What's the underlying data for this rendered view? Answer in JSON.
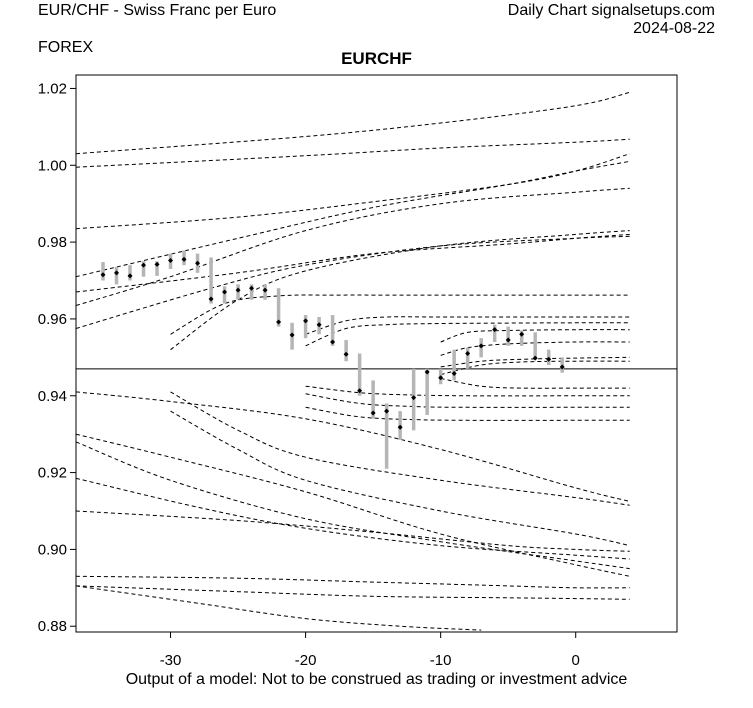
{
  "header": {
    "left_title": "EUR/CHF - Swiss Franc per Euro",
    "left_sub": "FOREX",
    "right_title": "Daily Chart signalsetups.com",
    "right_date": "2024-08-22"
  },
  "footer": "Output of a model: Not to be construed as trading or investment advice",
  "chart_data": {
    "type": "candlestick",
    "title": "EURCHF",
    "xlim": [
      -37,
      7.5
    ],
    "ylim": [
      0.8785,
      1.0235
    ],
    "x_ticks": [
      -30,
      -20,
      -10,
      0
    ],
    "x_tick_labels": [
      "-30",
      "-20",
      "-10",
      "0"
    ],
    "y_ticks": [
      0.88,
      0.9,
      0.92,
      0.94,
      0.96,
      0.98,
      1.0,
      1.02
    ],
    "y_tick_labels": [
      "0.88",
      "0.90",
      "0.92",
      "0.94",
      "0.96",
      "0.98",
      "1.00",
      "1.02"
    ],
    "reference_line": 0.947,
    "colors": {
      "range_bar": "#b5b5b5",
      "marker": "#000000",
      "curve": "#000000"
    },
    "bars": [
      {
        "x": -35,
        "high": 0.9748,
        "low": 0.97,
        "close": 0.9715
      },
      {
        "x": -34,
        "high": 0.9735,
        "low": 0.969,
        "close": 0.972
      },
      {
        "x": -33,
        "high": 0.974,
        "low": 0.97,
        "close": 0.9712
      },
      {
        "x": -32,
        "high": 0.975,
        "low": 0.971,
        "close": 0.974
      },
      {
        "x": -31,
        "high": 0.975,
        "low": 0.9712,
        "close": 0.9742
      },
      {
        "x": -30,
        "high": 0.977,
        "low": 0.973,
        "close": 0.9752
      },
      {
        "x": -29,
        "high": 0.9778,
        "low": 0.974,
        "close": 0.9755
      },
      {
        "x": -28,
        "high": 0.977,
        "low": 0.972,
        "close": 0.9745
      },
      {
        "x": -27,
        "high": 0.976,
        "low": 0.964,
        "close": 0.9652
      },
      {
        "x": -26,
        "high": 0.9685,
        "low": 0.964,
        "close": 0.967
      },
      {
        "x": -25,
        "high": 0.969,
        "low": 0.965,
        "close": 0.9675
      },
      {
        "x": -24,
        "high": 0.969,
        "low": 0.965,
        "close": 0.968
      },
      {
        "x": -23,
        "high": 0.969,
        "low": 0.965,
        "close": 0.9675
      },
      {
        "x": -22,
        "high": 0.968,
        "low": 0.958,
        "close": 0.9592
      },
      {
        "x": -21,
        "high": 0.959,
        "low": 0.952,
        "close": 0.9558
      },
      {
        "x": -20,
        "high": 0.961,
        "low": 0.955,
        "close": 0.9595
      },
      {
        "x": -19,
        "high": 0.9605,
        "low": 0.956,
        "close": 0.9585
      },
      {
        "x": -18,
        "high": 0.961,
        "low": 0.953,
        "close": 0.954
      },
      {
        "x": -17,
        "high": 0.9545,
        "low": 0.949,
        "close": 0.9508
      },
      {
        "x": -16,
        "high": 0.951,
        "low": 0.94,
        "close": 0.9413
      },
      {
        "x": -15,
        "high": 0.944,
        "low": 0.934,
        "close": 0.9355
      },
      {
        "x": -14,
        "high": 0.938,
        "low": 0.921,
        "close": 0.936
      },
      {
        "x": -13,
        "high": 0.936,
        "low": 0.9285,
        "close": 0.9318
      },
      {
        "x": -12,
        "high": 0.947,
        "low": 0.931,
        "close": 0.9395
      },
      {
        "x": -11,
        "high": 0.947,
        "low": 0.935,
        "close": 0.9462
      },
      {
        "x": -10,
        "high": 0.947,
        "low": 0.943,
        "close": 0.9447
      },
      {
        "x": -9,
        "high": 0.952,
        "low": 0.944,
        "close": 0.9458
      },
      {
        "x": -8,
        "high": 0.9525,
        "low": 0.947,
        "close": 0.951
      },
      {
        "x": -7,
        "high": 0.955,
        "low": 0.95,
        "close": 0.953
      },
      {
        "x": -6,
        "high": 0.9585,
        "low": 0.954,
        "close": 0.9572
      },
      {
        "x": -5,
        "high": 0.958,
        "low": 0.953,
        "close": 0.9545
      },
      {
        "x": -4,
        "high": 0.957,
        "low": 0.953,
        "close": 0.956
      },
      {
        "x": -3,
        "high": 0.9565,
        "low": 0.9495,
        "close": 0.9498
      },
      {
        "x": -2,
        "high": 0.952,
        "low": 0.948,
        "close": 0.9495
      },
      {
        "x": -1,
        "high": 0.95,
        "low": 0.946,
        "close": 0.9475
      }
    ],
    "curves": [
      {
        "x": [
          -37,
          -20,
          -10,
          0,
          4
        ],
        "y": [
          1.003,
          1.0075,
          1.011,
          1.0155,
          1.019
        ]
      },
      {
        "x": [
          -37,
          -20,
          -10,
          0,
          4
        ],
        "y": [
          0.9995,
          1.0025,
          1.0045,
          1.006,
          1.0068
        ]
      },
      {
        "x": [
          -37,
          -25,
          -15,
          -5,
          0,
          4
        ],
        "y": [
          0.9835,
          0.9865,
          0.9905,
          0.995,
          0.9985,
          1.003
        ]
      },
      {
        "x": [
          -37,
          -25,
          -15,
          -5,
          0,
          4
        ],
        "y": [
          0.971,
          0.981,
          0.989,
          0.995,
          0.9985,
          1.001
        ]
      },
      {
        "x": [
          -37,
          -30,
          -20,
          -10,
          0,
          4
        ],
        "y": [
          0.9635,
          0.971,
          0.983,
          0.99,
          0.993,
          0.994
        ]
      },
      {
        "x": [
          -37,
          -25,
          -15,
          -5,
          0,
          4
        ],
        "y": [
          0.967,
          0.972,
          0.977,
          0.9795,
          0.981,
          0.982
        ]
      },
      {
        "x": [
          -37,
          -27,
          -20,
          -10,
          0,
          4
        ],
        "y": [
          0.9575,
          0.968,
          0.974,
          0.979,
          0.981,
          0.9815
        ]
      },
      {
        "x": [
          -30,
          -25,
          -20,
          -10,
          0,
          4
        ],
        "y": [
          0.952,
          0.965,
          0.9725,
          0.979,
          0.982,
          0.983
        ]
      },
      {
        "x": [
          -30,
          -26,
          -22,
          -18,
          -12,
          0,
          4
        ],
        "y": [
          0.956,
          0.964,
          0.966,
          0.9662,
          0.9662,
          0.9662,
          0.9662
        ]
      },
      {
        "x": [
          -20,
          -17,
          -14,
          -10,
          0,
          4
        ],
        "y": [
          0.956,
          0.9595,
          0.9605,
          0.9605,
          0.9605,
          0.9605
        ]
      },
      {
        "x": [
          -20,
          -17,
          -14,
          -10,
          0,
          4
        ],
        "y": [
          0.953,
          0.9575,
          0.9585,
          0.9588,
          0.959,
          0.959
        ]
      },
      {
        "x": [
          -10,
          -8,
          -5,
          0,
          4
        ],
        "y": [
          0.954,
          0.9565,
          0.957,
          0.9572,
          0.9572
        ]
      },
      {
        "x": [
          -10,
          -8,
          -5,
          0,
          4
        ],
        "y": [
          0.9505,
          0.9525,
          0.9535,
          0.954,
          0.954
        ]
      },
      {
        "x": [
          -10,
          -7,
          -4,
          0,
          4
        ],
        "y": [
          0.9475,
          0.949,
          0.9495,
          0.9498,
          0.95
        ]
      },
      {
        "x": [
          -10,
          -7,
          -4,
          0,
          4
        ],
        "y": [
          0.9455,
          0.948,
          0.9488,
          0.949,
          0.949
        ]
      },
      {
        "x": [
          -10,
          -7,
          -4,
          0,
          4
        ],
        "y": [
          0.9445,
          0.9425,
          0.942,
          0.942,
          0.942
        ]
      },
      {
        "x": [
          -20,
          -16,
          -12,
          -8,
          0,
          4
        ],
        "y": [
          0.9425,
          0.9408,
          0.9402,
          0.94,
          0.94,
          0.94
        ]
      },
      {
        "x": [
          -20,
          -16,
          -12,
          -8,
          0,
          4
        ],
        "y": [
          0.9405,
          0.938,
          0.9372,
          0.937,
          0.937,
          0.937
        ]
      },
      {
        "x": [
          -20,
          -16,
          -12,
          -8,
          0,
          4
        ],
        "y": [
          0.937,
          0.9345,
          0.9338,
          0.9336,
          0.9336,
          0.9336
        ]
      },
      {
        "x": [
          -37,
          -30,
          -20,
          -10,
          0,
          4
        ],
        "y": [
          0.941,
          0.9385,
          0.934,
          0.926,
          0.916,
          0.9125
        ]
      },
      {
        "x": [
          -30,
          -25,
          -20,
          -10,
          0,
          4
        ],
        "y": [
          0.941,
          0.931,
          0.924,
          0.918,
          0.9135,
          0.9115
        ]
      },
      {
        "x": [
          -30,
          -25,
          -20,
          -10,
          0,
          4
        ],
        "y": [
          0.936,
          0.926,
          0.918,
          0.91,
          0.904,
          0.901
        ]
      },
      {
        "x": [
          -37,
          -30,
          -20,
          -10,
          0,
          4
        ],
        "y": [
          0.93,
          0.924,
          0.915,
          0.904,
          0.896,
          0.893
        ]
      },
      {
        "x": [
          -37,
          -30,
          -20,
          -10,
          0,
          4
        ],
        "y": [
          0.928,
          0.918,
          0.908,
          0.902,
          0.897,
          0.895
        ]
      },
      {
        "x": [
          -37,
          -28,
          -20,
          -10,
          0,
          4
        ],
        "y": [
          0.9185,
          0.911,
          0.9055,
          0.901,
          0.8985,
          0.8975
        ]
      },
      {
        "x": [
          -37,
          -25,
          -15,
          -5,
          0,
          4
        ],
        "y": [
          0.91,
          0.9075,
          0.9045,
          0.901,
          0.9,
          0.8995
        ]
      },
      {
        "x": [
          -37,
          -25,
          -15,
          -5,
          0,
          4
        ],
        "y": [
          0.893,
          0.8925,
          0.8915,
          0.8905,
          0.89,
          0.89
        ]
      },
      {
        "x": [
          -37,
          -25,
          -15,
          -5,
          0,
          4
        ],
        "y": [
          0.8905,
          0.889,
          0.8878,
          0.8874,
          0.8872,
          0.887
        ]
      },
      {
        "x": [
          -37,
          -28,
          -20,
          -13,
          -7
        ],
        "y": [
          0.8905,
          0.886,
          0.882,
          0.88,
          0.879
        ]
      }
    ]
  }
}
